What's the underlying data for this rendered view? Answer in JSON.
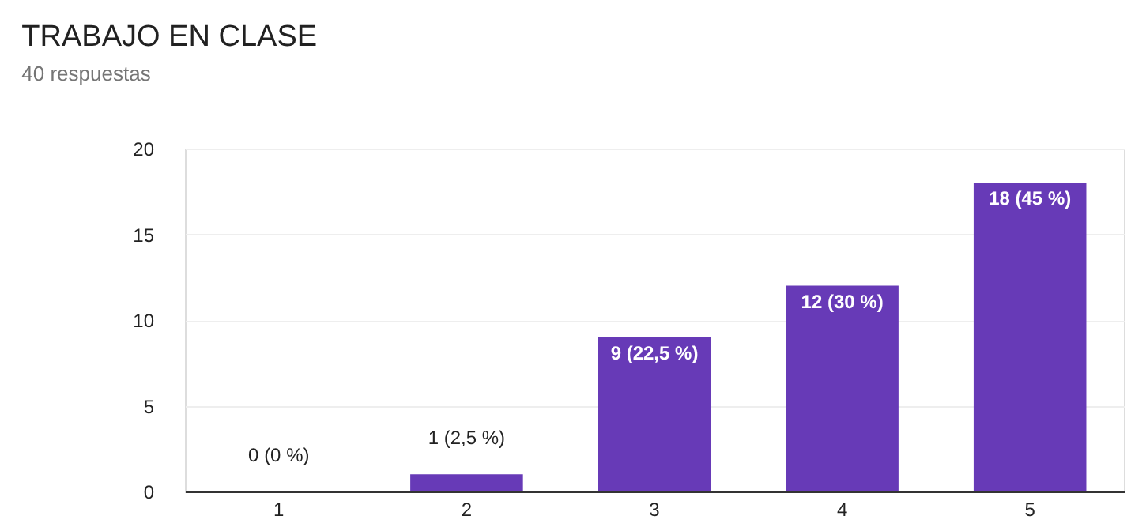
{
  "chart_data": {
    "type": "bar",
    "title": "TRABAJO EN CLASE",
    "subtitle": "40 respuestas",
    "categories": [
      "1",
      "2",
      "3",
      "4",
      "5"
    ],
    "values": [
      0,
      1,
      9,
      12,
      18
    ],
    "value_labels": [
      "0 (0 %)",
      "1 (2,5 %)",
      "9 (22,5 %)",
      "12 (30 %)",
      "18 (45 %)"
    ],
    "color": "#673ab7",
    "ylim": [
      0,
      20
    ],
    "yticks": [
      0,
      5,
      10,
      15,
      20
    ],
    "grid": "y"
  }
}
